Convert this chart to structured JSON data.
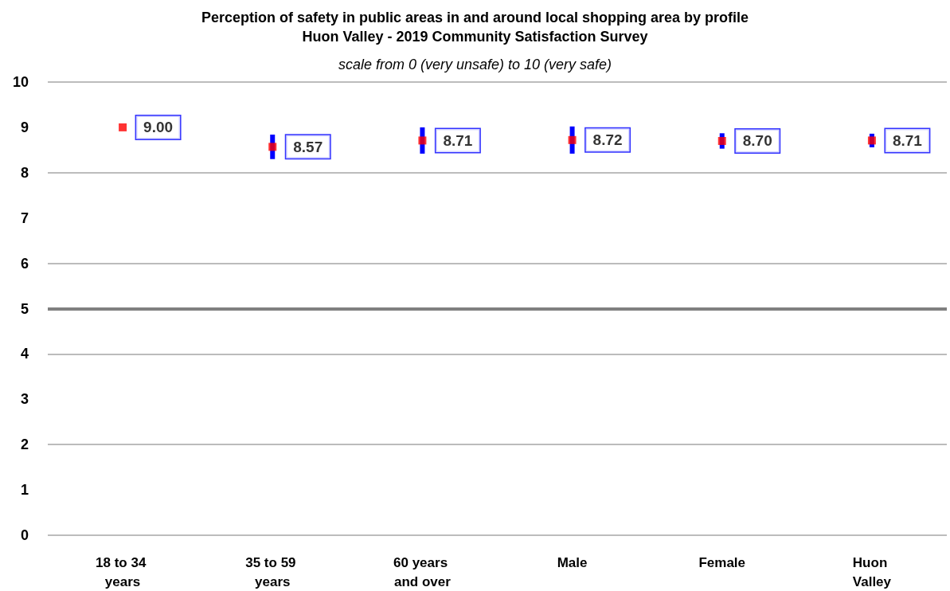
{
  "chart_data": {
    "type": "scatter",
    "title": "Perception of safety in public areas in and around local shopping area by profile",
    "subtitle": "Huon Valley - 2019 Community Satisfaction Survey",
    "annotations": [
      "scale from 0 (very unsafe) to 10 (very safe)"
    ],
    "categories": [
      "18 to 34 years",
      "35 to 59 years",
      "60 years and over",
      "Male",
      "Female",
      "Huon Valley"
    ],
    "series": [
      {
        "color": "#ff0000",
        "values": [
          9.0,
          8.57,
          8.71,
          8.72,
          8.7,
          8.71
        ],
        "errors": [
          null,
          0.27,
          0.29,
          0.3,
          0.17,
          0.15
        ],
        "value_labels": [
          "9.00",
          "8.57",
          "8.71",
          "8.72",
          "8.70",
          "8.71"
        ]
      }
    ],
    "marker": "square",
    "ylim": [
      0,
      10
    ],
    "yticks": [
      0,
      1,
      2,
      3,
      4,
      5,
      6,
      7,
      8,
      9,
      10
    ],
    "grid": "y",
    "ref_lines": [
      {
        "axis": "y",
        "value": 5,
        "color": "#808080"
      }
    ]
  }
}
